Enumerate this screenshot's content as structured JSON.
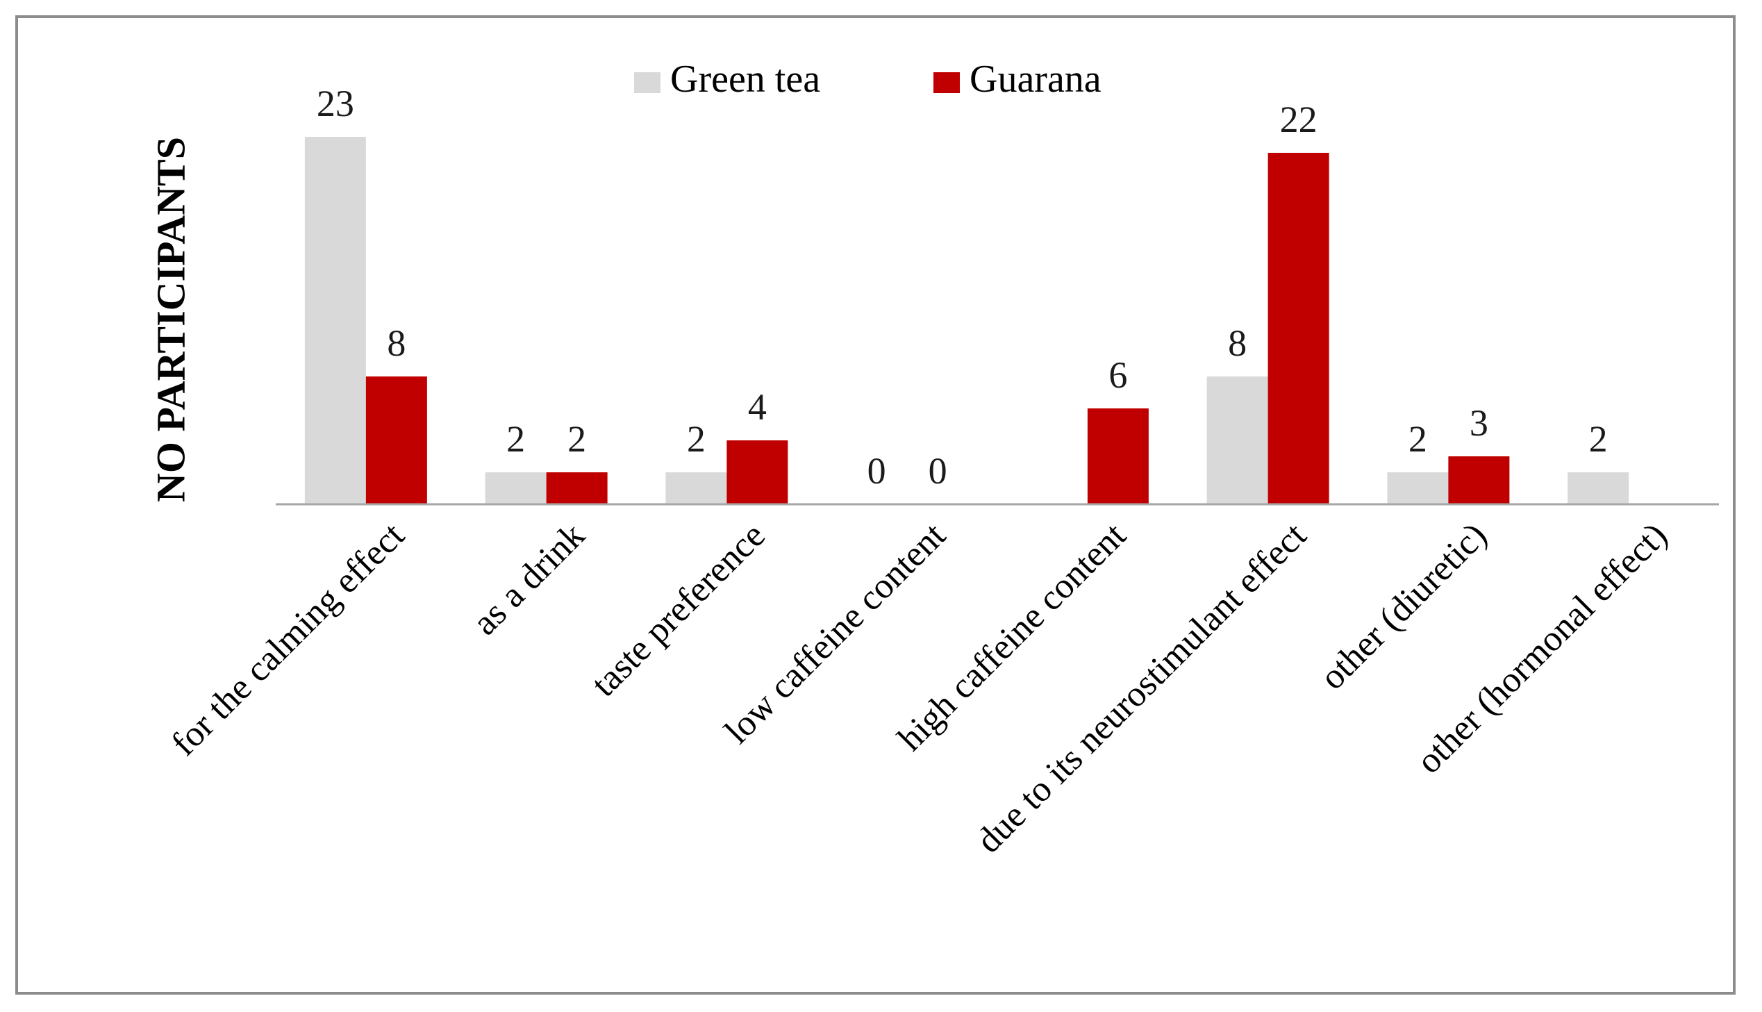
{
  "chart_data": {
    "type": "bar",
    "title": "",
    "xlabel": "",
    "ylabel": "NO PARTICIPANTS",
    "ylim": [
      0,
      25
    ],
    "grid": false,
    "legend": "top-center",
    "categories": [
      "for the calming effect",
      "as a drink",
      "taste preference",
      "low caffeine content",
      "high caffeine content",
      "due to its neurostimulant effect",
      "other (diuretic)",
      "other (hormonal effect)"
    ],
    "series": [
      {
        "name": "Green tea",
        "color": "#d9d9d9",
        "values": [
          23,
          2,
          2,
          0,
          null,
          8,
          2,
          2
        ],
        "labels": [
          "23",
          "2",
          "2",
          "0",
          "",
          "8",
          "2",
          "2"
        ]
      },
      {
        "name": "Guarana",
        "color": "#c00000",
        "values": [
          8,
          2,
          4,
          0,
          6,
          22,
          3,
          null
        ],
        "labels": [
          "8",
          "2",
          "4",
          "0",
          "6",
          "22",
          "3",
          ""
        ]
      }
    ]
  }
}
